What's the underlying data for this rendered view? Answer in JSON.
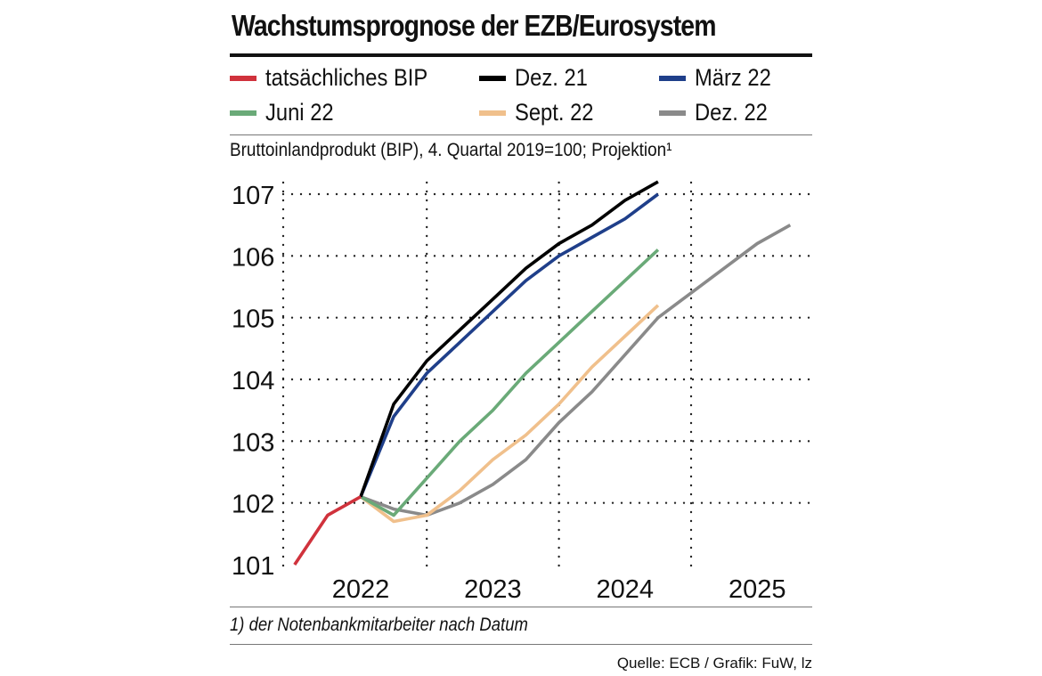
{
  "header": {
    "title": "Wachstumsprognose der EZB/Eurosystem",
    "subtitle": "Bruttoinlandprodukt (BIP), 4. Quartal 2019=100; Projektion¹"
  },
  "legend": [
    {
      "label": "tatsächliches BIP",
      "color": "#d0323c"
    },
    {
      "label": "Dez. 21",
      "color": "#000000"
    },
    {
      "label": "März 22",
      "color": "#1f3f8a"
    },
    {
      "label": "Juni 22",
      "color": "#6aaa78"
    },
    {
      "label": "Sept. 22",
      "color": "#f0c08c"
    },
    {
      "label": "Dez. 22",
      "color": "#8a8a8a"
    }
  ],
  "chart_data": {
    "type": "line",
    "title": "Wachstumsprognose der EZB/Eurosystem",
    "xlabel": "",
    "ylabel": "Bruttoinlandprodukt (BIP), 4. Quartal 2019=100",
    "x_unit": "quarter index (0 = Q1 2022)",
    "xlim": [
      -0.5,
      15.5
    ],
    "ylim": [
      101,
      107.3
    ],
    "yticks": [
      101,
      102,
      103,
      104,
      105,
      106,
      107
    ],
    "xtick_labels": [
      "2022",
      "2023",
      "2024",
      "2025"
    ],
    "year_separators_after_quarter": [
      3.5,
      7.5,
      11.5
    ],
    "grid": true,
    "series": [
      {
        "name": "tatsächliches BIP",
        "color": "#d0323c",
        "x": [
          -0.5,
          0.5,
          1.5
        ],
        "y": [
          101.0,
          101.8,
          102.1
        ]
      },
      {
        "name": "Dez. 21",
        "color": "#000000",
        "x": [
          1.5,
          2.5,
          3.5,
          4.5,
          5.5,
          6.5,
          7.5,
          8.5,
          9.5,
          10.5,
          11.5
        ],
        "y": [
          102.1,
          103.6,
          104.3,
          104.8,
          105.3,
          105.8,
          106.2,
          106.5,
          106.9,
          107.2,
          null
        ]
      },
      {
        "name": "März 22",
        "color": "#1f3f8a",
        "x": [
          1.5,
          2.5,
          3.5,
          4.5,
          5.5,
          6.5,
          7.5,
          8.5,
          9.5,
          10.5
        ],
        "y": [
          102.1,
          103.4,
          104.1,
          104.6,
          105.1,
          105.6,
          106.0,
          106.3,
          106.6,
          107.0
        ]
      },
      {
        "name": "Juni 22",
        "color": "#6aaa78",
        "x": [
          1.5,
          2.5,
          3.5,
          4.5,
          5.5,
          6.5,
          7.5,
          8.5,
          9.5,
          10.5
        ],
        "y": [
          102.1,
          101.8,
          102.4,
          103.0,
          103.5,
          104.1,
          104.6,
          105.1,
          105.6,
          106.1
        ]
      },
      {
        "name": "Sept. 22",
        "color": "#f0c08c",
        "x": [
          1.5,
          2.5,
          3.5,
          4.5,
          5.5,
          6.5,
          7.5,
          8.5,
          9.5,
          10.5
        ],
        "y": [
          102.1,
          101.7,
          101.8,
          102.2,
          102.7,
          103.1,
          103.6,
          104.2,
          104.7,
          105.2
        ]
      },
      {
        "name": "Dez. 22",
        "color": "#8a8a8a",
        "x": [
          1.5,
          2.5,
          3.5,
          4.5,
          5.5,
          6.5,
          7.5,
          8.5,
          9.5,
          10.5,
          11.5,
          12.5,
          13.5,
          14.5
        ],
        "y": [
          102.1,
          101.9,
          101.8,
          102.0,
          102.3,
          102.7,
          103.3,
          103.8,
          104.4,
          105.0,
          105.4,
          105.8,
          106.2,
          106.5
        ]
      }
    ]
  },
  "footnote": "1) der Notenbankmitarbeiter nach Datum",
  "source": "Quelle: ECB / Grafik: FuW, lz"
}
